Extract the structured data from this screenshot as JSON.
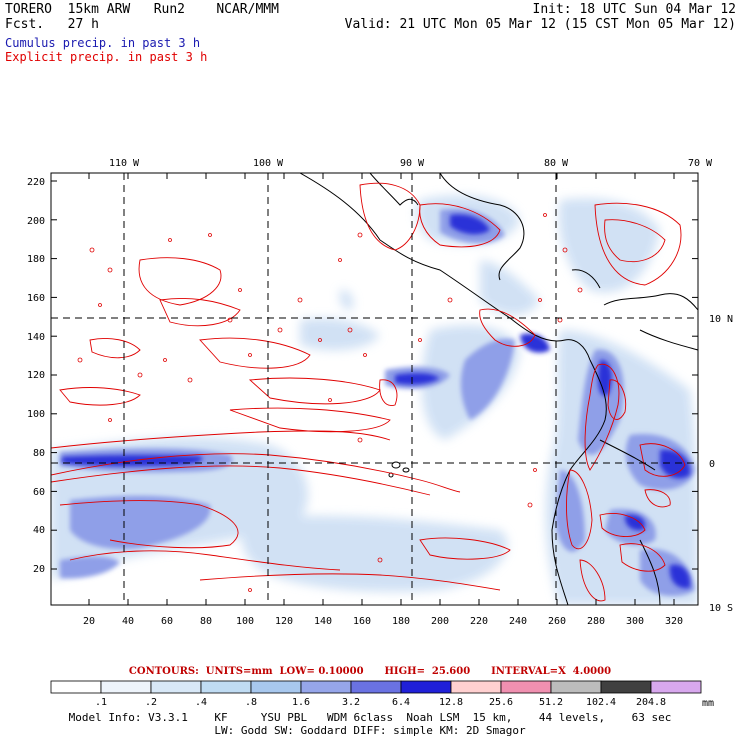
{
  "header": {
    "left_line1": "TORERO  15km ARW   Run2    NCAR/MMM",
    "left_line2": "Fcst.   27 h",
    "right_line1": "Init: 18 UTC Sun 04 Mar 12",
    "right_line2": "Valid: 21 UTC Mon 05 Mar 12 (15 CST Mon 05 Mar 12)",
    "cumulus_label": "Cumulus precip. in past 3 h",
    "explicit_label": "Explicit precip. in past 3 h"
  },
  "colors": {
    "cumulus_label": "#1a1ab0",
    "explicit_label": "#e00000",
    "precip_contour": "#e00000",
    "coastline": "#000000"
  },
  "map": {
    "lon_labels": [
      "110 W",
      "100 W",
      "90 W",
      "80 W",
      "70 W"
    ],
    "lat_labels": [
      "10 N",
      "0",
      "10 S"
    ],
    "y_grid_labels": [
      "220",
      "200",
      "180",
      "160",
      "140",
      "120",
      "100",
      "80",
      "60",
      "40",
      "20"
    ],
    "x_grid_labels": [
      "20",
      "40",
      "60",
      "80",
      "100",
      "120",
      "140",
      "160",
      "180",
      "200",
      "220",
      "240",
      "260",
      "280",
      "300",
      "320"
    ]
  },
  "contour_info": {
    "contours_label": "CONTOURS:  UNITS=mm  LOW= 0.10000",
    "high_label": "HIGH=  25.600",
    "interval_label": "INTERVAL=X  4.0000"
  },
  "legend": {
    "ticks": [
      ".1",
      ".2",
      ".4",
      ".8",
      "1.6",
      "3.2",
      "6.4",
      "12.8",
      "25.6",
      "51.2",
      "102.4",
      "204.8"
    ],
    "unit": "mm",
    "colors": [
      "#ffffff",
      "#eef4fb",
      "#d8e8f7",
      "#c0dcf3",
      "#a8c8ee",
      "#96a6ea",
      "#6a72e2",
      "#2020d8",
      "#ffd0d0",
      "#f090b0",
      "#bcbcbc",
      "#404040",
      "#d8a8ee"
    ]
  },
  "model_info": {
    "line1": "Model Info: V3.3.1    KF     YSU PBL   WDM 6class  Noah LSM  15 km,    44 levels,    63 sec",
    "line2": "LW: Godd SW: Goddard DIFF: simple KM: 2D Smagor"
  }
}
